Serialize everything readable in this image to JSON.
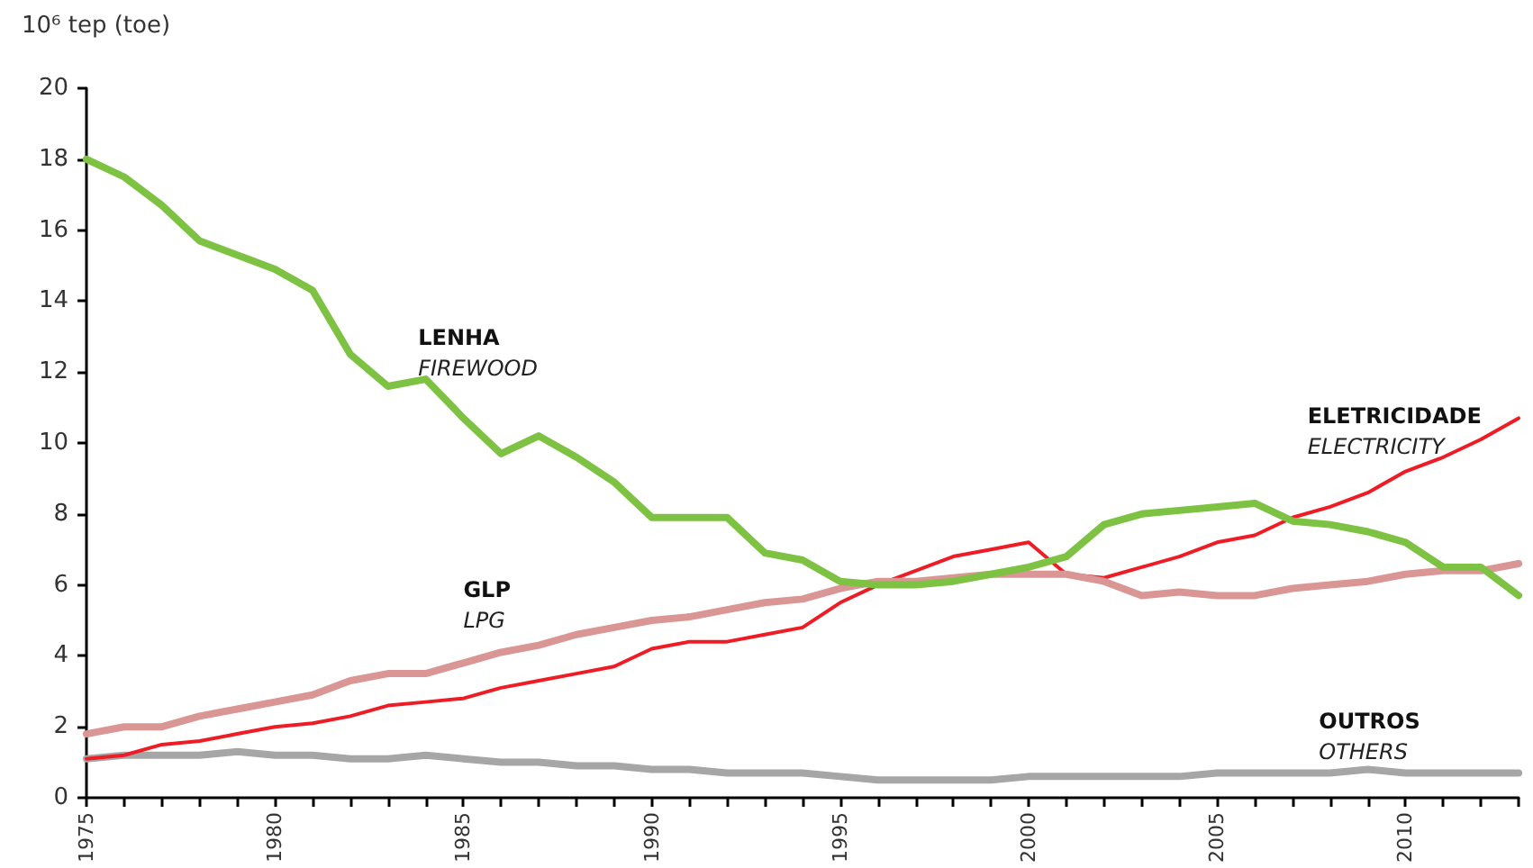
{
  "chart_data": {
    "type": "line",
    "ylabel": "10⁶ tep (toe)",
    "x": [
      1975,
      1976,
      1977,
      1978,
      1979,
      1980,
      1981,
      1982,
      1983,
      1984,
      1985,
      1986,
      1987,
      1988,
      1989,
      1990,
      1991,
      1992,
      1993,
      1994,
      1995,
      1996,
      1997,
      1998,
      1999,
      2000,
      2001,
      2002,
      2003,
      2004,
      2005,
      2006,
      2007,
      2008,
      2009,
      2010,
      2011,
      2012,
      2013
    ],
    "series": [
      {
        "name": "LENHA\nFIREWOOD",
        "color": "#7dc242",
        "values": [
          18.0,
          17.5,
          16.7,
          15.7,
          15.3,
          14.9,
          14.3,
          12.5,
          11.6,
          11.8,
          10.7,
          9.7,
          10.2,
          9.6,
          8.9,
          7.9,
          7.9,
          7.9,
          6.9,
          6.7,
          6.1,
          6.0,
          6.0,
          6.1,
          6.3,
          6.5,
          6.8,
          7.7,
          8.0,
          8.1,
          8.2,
          8.3,
          7.8,
          7.7,
          7.5,
          7.2,
          6.5,
          6.5,
          5.7
        ]
      },
      {
        "name": "GLP\nLPG",
        "color": "#d99694",
        "values": [
          1.8,
          2.0,
          2.0,
          2.3,
          2.5,
          2.7,
          2.9,
          3.3,
          3.5,
          3.5,
          3.8,
          4.1,
          4.3,
          4.6,
          4.8,
          5.0,
          5.1,
          5.3,
          5.5,
          5.6,
          5.9,
          6.1,
          6.1,
          6.2,
          6.3,
          6.3,
          6.3,
          6.1,
          5.7,
          5.8,
          5.7,
          5.7,
          5.9,
          6.0,
          6.1,
          6.3,
          6.4,
          6.4,
          6.6
        ]
      },
      {
        "name": "ELETRICIDADE\nELECTRICITY",
        "color": "#ee1c25",
        "values": [
          1.1,
          1.2,
          1.5,
          1.6,
          1.8,
          2.0,
          2.1,
          2.3,
          2.6,
          2.7,
          2.8,
          3.1,
          3.3,
          3.5,
          3.7,
          4.2,
          4.4,
          4.4,
          4.6,
          4.8,
          5.5,
          6.0,
          6.4,
          6.8,
          7.0,
          7.2,
          6.3,
          6.2,
          6.5,
          6.8,
          7.2,
          7.4,
          7.9,
          8.2,
          8.6,
          9.2,
          9.6,
          10.1,
          10.7
        ]
      },
      {
        "name": "OUTROS\nOTHERS",
        "color": "#a6a6a6",
        "values": [
          1.1,
          1.2,
          1.2,
          1.2,
          1.3,
          1.2,
          1.2,
          1.1,
          1.1,
          1.2,
          1.1,
          1.0,
          1.0,
          0.9,
          0.9,
          0.8,
          0.8,
          0.7,
          0.7,
          0.7,
          0.6,
          0.5,
          0.5,
          0.5,
          0.5,
          0.6,
          0.6,
          0.6,
          0.6,
          0.6,
          0.7,
          0.7,
          0.7,
          0.7,
          0.8,
          0.7,
          0.7,
          0.7,
          0.7
        ]
      }
    ],
    "xlim": [
      1975,
      2013
    ],
    "xticks": [
      1975,
      {
        "value": 1976,
        "label": null
      },
      {
        "value": 1977,
        "label": null
      },
      {
        "value": 1978,
        "label": null
      },
      {
        "value": 1979,
        "label": null
      },
      1980,
      {
        "value": 1981,
        "label": null
      },
      {
        "value": 1982,
        "label": null
      },
      {
        "value": 1983,
        "label": null
      },
      {
        "value": 1984,
        "label": null
      },
      1985,
      {
        "value": 1986,
        "label": null
      },
      {
        "value": 1987,
        "label": null
      },
      {
        "value": 1988,
        "label": null
      },
      {
        "value": 1989,
        "label": null
      },
      1990,
      {
        "value": 1991,
        "label": null
      },
      {
        "value": 1992,
        "label": null
      },
      {
        "value": 1993,
        "label": null
      },
      {
        "value": 1994,
        "label": null
      },
      1995,
      {
        "value": 1996,
        "label": null
      },
      {
        "value": 1997,
        "label": null
      },
      {
        "value": 1998,
        "label": null
      },
      {
        "value": 1999,
        "label": null
      },
      2000,
      {
        "value": 2001,
        "label": null
      },
      {
        "value": 2002,
        "label": null
      },
      {
        "value": 2003,
        "label": null
      },
      {
        "value": 2004,
        "label": null
      },
      2005,
      {
        "value": 2006,
        "label": null
      },
      {
        "value": 2007,
        "label": null
      },
      {
        "value": 2008,
        "label": null
      },
      {
        "value": 2009,
        "label": null
      },
      2010,
      {
        "value": 2011,
        "label": null
      },
      {
        "value": 2012,
        "label": null
      },
      {
        "value": 2013,
        "label": null
      }
    ],
    "ylim": [
      0,
      20
    ],
    "yticks": [
      0,
      2,
      4,
      6,
      8,
      10,
      12,
      14,
      16,
      18,
      20
    ],
    "grid": false,
    "legend": false,
    "marker": "none",
    "line_style": "solid"
  }
}
